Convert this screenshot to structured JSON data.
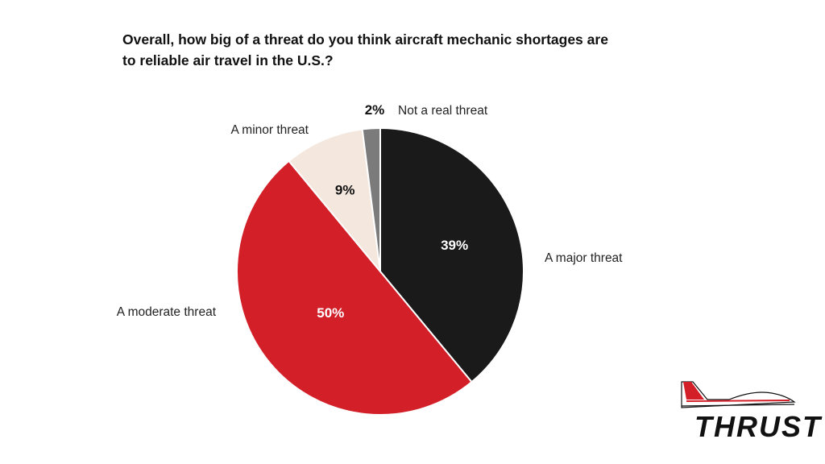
{
  "title_lines": [
    "Overall, how big of a threat do you think aircraft mechanic shortages are",
    "to reliable air travel in the U.S.?"
  ],
  "chart_data": {
    "type": "pie",
    "title": "Overall, how big of a threat do you think aircraft mechanic shortages are to reliable air travel in the U.S.?",
    "unit": "%",
    "start": "12 o'clock, clockwise",
    "slices": [
      {
        "label": "A major threat",
        "value": 39,
        "value_label": "39%",
        "color": "#1b1a1b",
        "value_text_color": "#ffffff"
      },
      {
        "label": "A moderate threat",
        "value": 50,
        "value_label": "50%",
        "color": "#d21f28",
        "value_text_color": "#ffffff"
      },
      {
        "label": "A minor threat",
        "value": 9,
        "value_label": "9%",
        "color": "#f4e7de",
        "value_text_color": "#111111"
      },
      {
        "label": "Not a real threat",
        "value": 2,
        "value_label": "2%",
        "color": "#7b7b7b",
        "value_text_color": "#111111"
      }
    ]
  },
  "logo": {
    "text": "THRUST",
    "accent_color": "#d21f28"
  }
}
